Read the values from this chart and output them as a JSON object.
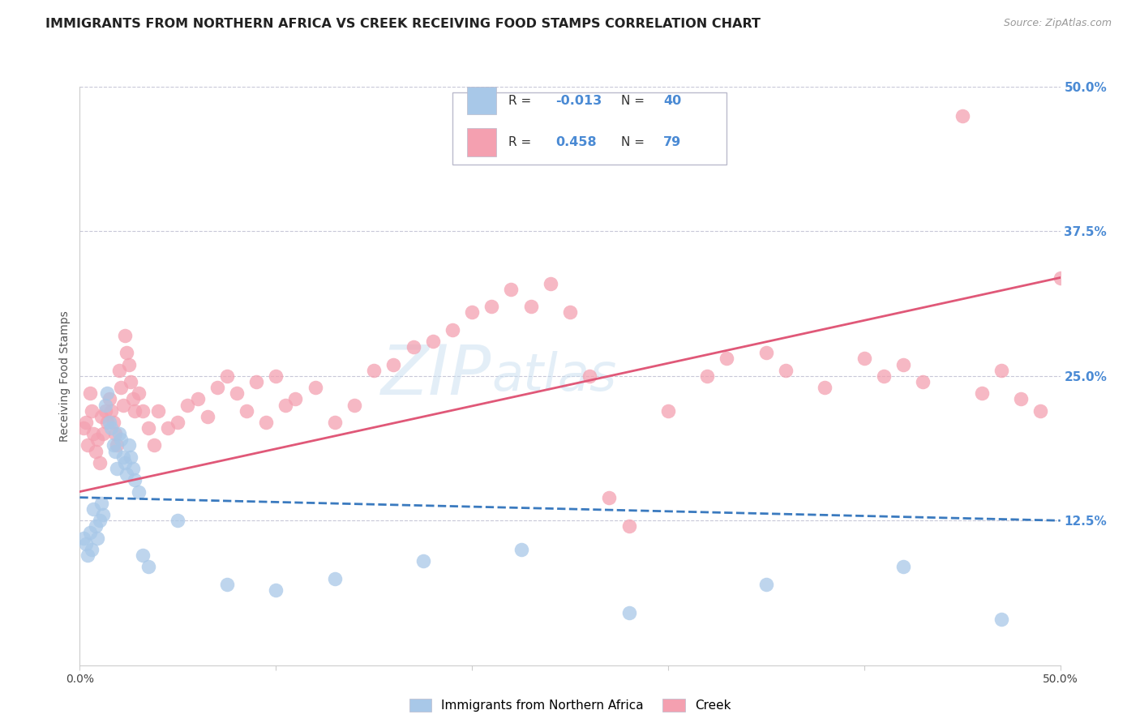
{
  "title": "IMMIGRANTS FROM NORTHERN AFRICA VS CREEK RECEIVING FOOD STAMPS CORRELATION CHART",
  "source": "Source: ZipAtlas.com",
  "ylabel": "Receiving Food Stamps",
  "xlim": [
    0.0,
    50.0
  ],
  "ylim": [
    0.0,
    50.0
  ],
  "right_yticks": [
    12.5,
    25.0,
    37.5,
    50.0
  ],
  "xtick_positions": [
    0.0,
    10.0,
    20.0,
    30.0,
    40.0,
    50.0
  ],
  "xtick_labels": [
    "0.0%",
    "",
    "",
    "",
    "",
    "50.0%"
  ],
  "watermark_zip": "ZIP",
  "watermark_atlas": "atlas",
  "legend": {
    "blue_label": "Immigrants from Northern Africa",
    "pink_label": "Creek",
    "blue_R": "-0.013",
    "blue_N": "40",
    "pink_R": "0.458",
    "pink_N": "79"
  },
  "blue_scatter": [
    [
      0.2,
      11.0
    ],
    [
      0.3,
      10.5
    ],
    [
      0.4,
      9.5
    ],
    [
      0.5,
      11.5
    ],
    [
      0.6,
      10.0
    ],
    [
      0.7,
      13.5
    ],
    [
      0.8,
      12.0
    ],
    [
      0.9,
      11.0
    ],
    [
      1.0,
      12.5
    ],
    [
      1.1,
      14.0
    ],
    [
      1.2,
      13.0
    ],
    [
      1.3,
      22.5
    ],
    [
      1.4,
      23.5
    ],
    [
      1.5,
      21.0
    ],
    [
      1.6,
      20.5
    ],
    [
      1.7,
      19.0
    ],
    [
      1.8,
      18.5
    ],
    [
      1.9,
      17.0
    ],
    [
      2.0,
      20.0
    ],
    [
      2.1,
      19.5
    ],
    [
      2.2,
      18.0
    ],
    [
      2.3,
      17.5
    ],
    [
      2.4,
      16.5
    ],
    [
      2.5,
      19.0
    ],
    [
      2.6,
      18.0
    ],
    [
      2.7,
      17.0
    ],
    [
      2.8,
      16.0
    ],
    [
      3.0,
      15.0
    ],
    [
      3.2,
      9.5
    ],
    [
      3.5,
      8.5
    ],
    [
      5.0,
      12.5
    ],
    [
      7.5,
      7.0
    ],
    [
      10.0,
      6.5
    ],
    [
      13.0,
      7.5
    ],
    [
      17.5,
      9.0
    ],
    [
      22.5,
      10.0
    ],
    [
      28.0,
      4.5
    ],
    [
      35.0,
      7.0
    ],
    [
      42.0,
      8.5
    ],
    [
      47.0,
      4.0
    ]
  ],
  "pink_scatter": [
    [
      0.2,
      20.5
    ],
    [
      0.3,
      21.0
    ],
    [
      0.4,
      19.0
    ],
    [
      0.5,
      23.5
    ],
    [
      0.6,
      22.0
    ],
    [
      0.7,
      20.0
    ],
    [
      0.8,
      18.5
    ],
    [
      0.9,
      19.5
    ],
    [
      1.0,
      17.5
    ],
    [
      1.1,
      21.5
    ],
    [
      1.2,
      20.0
    ],
    [
      1.3,
      22.0
    ],
    [
      1.4,
      21.0
    ],
    [
      1.5,
      23.0
    ],
    [
      1.6,
      22.0
    ],
    [
      1.7,
      21.0
    ],
    [
      1.8,
      20.0
    ],
    [
      1.9,
      19.0
    ],
    [
      2.0,
      25.5
    ],
    [
      2.1,
      24.0
    ],
    [
      2.2,
      22.5
    ],
    [
      2.3,
      28.5
    ],
    [
      2.4,
      27.0
    ],
    [
      2.5,
      26.0
    ],
    [
      2.6,
      24.5
    ],
    [
      2.7,
      23.0
    ],
    [
      2.8,
      22.0
    ],
    [
      3.0,
      23.5
    ],
    [
      3.2,
      22.0
    ],
    [
      3.5,
      20.5
    ],
    [
      3.8,
      19.0
    ],
    [
      4.0,
      22.0
    ],
    [
      4.5,
      20.5
    ],
    [
      5.0,
      21.0
    ],
    [
      5.5,
      22.5
    ],
    [
      6.0,
      23.0
    ],
    [
      6.5,
      21.5
    ],
    [
      7.0,
      24.0
    ],
    [
      7.5,
      25.0
    ],
    [
      8.0,
      23.5
    ],
    [
      8.5,
      22.0
    ],
    [
      9.0,
      24.5
    ],
    [
      9.5,
      21.0
    ],
    [
      10.0,
      25.0
    ],
    [
      10.5,
      22.5
    ],
    [
      11.0,
      23.0
    ],
    [
      12.0,
      24.0
    ],
    [
      13.0,
      21.0
    ],
    [
      14.0,
      22.5
    ],
    [
      15.0,
      25.5
    ],
    [
      16.0,
      26.0
    ],
    [
      17.0,
      27.5
    ],
    [
      18.0,
      28.0
    ],
    [
      19.0,
      29.0
    ],
    [
      20.0,
      30.5
    ],
    [
      21.0,
      31.0
    ],
    [
      22.0,
      32.5
    ],
    [
      23.0,
      31.0
    ],
    [
      24.0,
      33.0
    ],
    [
      25.0,
      30.5
    ],
    [
      26.0,
      25.0
    ],
    [
      27.0,
      14.5
    ],
    [
      28.0,
      12.0
    ],
    [
      30.0,
      22.0
    ],
    [
      32.0,
      25.0
    ],
    [
      33.0,
      26.5
    ],
    [
      35.0,
      27.0
    ],
    [
      36.0,
      25.5
    ],
    [
      38.0,
      24.0
    ],
    [
      40.0,
      26.5
    ],
    [
      41.0,
      25.0
    ],
    [
      42.0,
      26.0
    ],
    [
      43.0,
      24.5
    ],
    [
      45.0,
      47.5
    ],
    [
      46.0,
      23.5
    ],
    [
      47.0,
      25.5
    ],
    [
      48.0,
      23.0
    ],
    [
      49.0,
      22.0
    ],
    [
      50.0,
      33.5
    ]
  ],
  "blue_line": {
    "x0": 0.0,
    "y0": 14.5,
    "x1": 50.0,
    "y1": 12.5
  },
  "pink_line": {
    "x0": 0.0,
    "y0": 15.0,
    "x1": 50.0,
    "y1": 33.5
  },
  "blue_color": "#a8c8e8",
  "pink_color": "#f4a0b0",
  "blue_line_color": "#3a7abf",
  "pink_line_color": "#e05878",
  "background_color": "#ffffff",
  "grid_color": "#c8c8d8",
  "title_color": "#222222",
  "right_label_color": "#4a8ad4",
  "title_fontsize": 11.5,
  "label_fontsize": 10,
  "tick_fontsize": 10
}
